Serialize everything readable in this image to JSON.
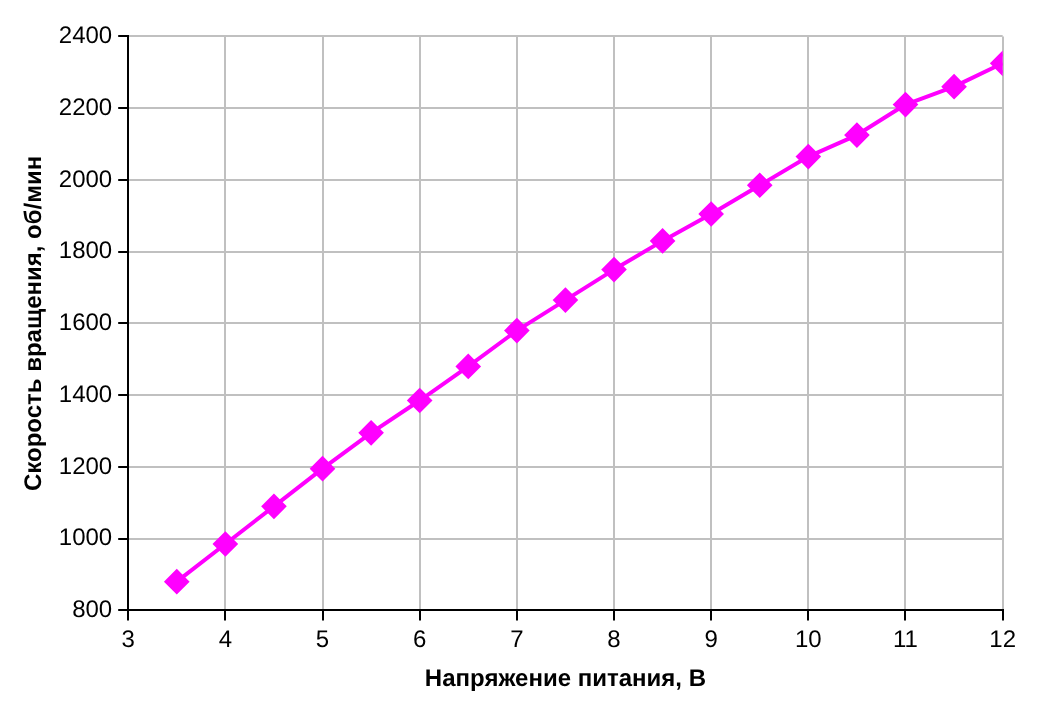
{
  "chart_data": {
    "type": "line",
    "xlabel": "Напряжение питания, В",
    "ylabel": "Скорость вращения, об/мин",
    "x": [
      3.5,
      4,
      4.5,
      5,
      5.5,
      6,
      6.5,
      7,
      7.5,
      8,
      8.5,
      9,
      9.5,
      10,
      10.5,
      11,
      11.5,
      12
    ],
    "series": [
      {
        "color": "#ff00ff",
        "values": [
          880,
          985,
          1090,
          1195,
          1295,
          1385,
          1480,
          1580,
          1665,
          1750,
          1830,
          1905,
          1985,
          2065,
          2125,
          2210,
          2260,
          2325
        ]
      }
    ],
    "xlim": [
      3,
      12
    ],
    "xticks": [
      3,
      4,
      5,
      6,
      7,
      8,
      9,
      10,
      11,
      12
    ],
    "ylim": [
      800,
      2400
    ],
    "yticks": [
      800,
      1000,
      1200,
      1400,
      1600,
      1800,
      2000,
      2200,
      2400
    ],
    "grid": true,
    "marker": "diamond",
    "line_style": "solid"
  }
}
